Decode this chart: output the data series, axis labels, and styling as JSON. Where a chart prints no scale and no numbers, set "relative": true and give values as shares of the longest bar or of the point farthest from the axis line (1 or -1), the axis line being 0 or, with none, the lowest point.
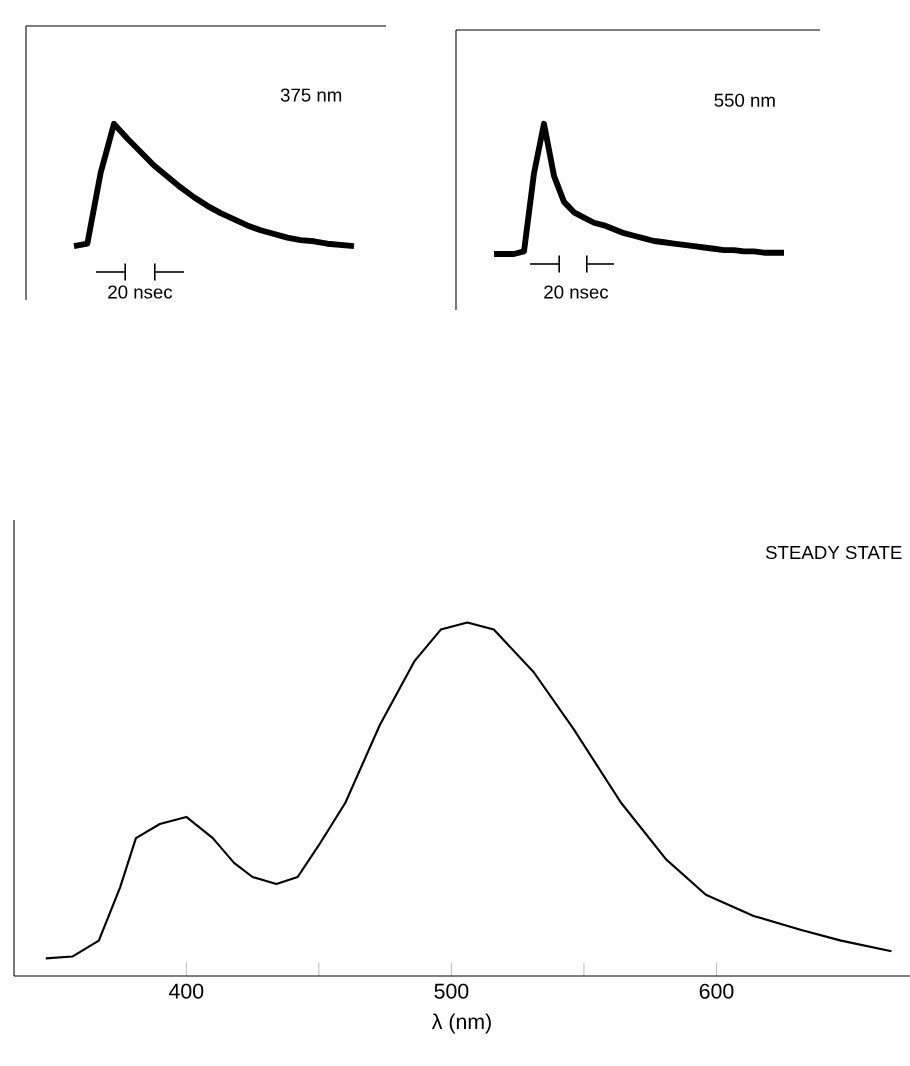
{
  "chart_data": [
    {
      "type": "line",
      "title": "375 nm",
      "relative": true,
      "color": "#000000",
      "annotations": [
        "20 nsec"
      ],
      "categories": [
        null,
        null,
        null,
        null,
        null,
        null,
        null,
        null,
        null,
        null,
        null,
        null,
        null,
        null,
        null,
        null,
        null,
        null,
        null,
        null,
        null,
        null
      ],
      "values": [
        0,
        0.02,
        0.6,
        1.0,
        0.88,
        0.77,
        0.66,
        0.57,
        0.48,
        0.4,
        0.33,
        0.27,
        0.22,
        0.17,
        0.13,
        0.1,
        0.07,
        0.05,
        0.04,
        0.02,
        0.01,
        0
      ]
    },
    {
      "type": "line",
      "title": "550 nm",
      "relative": true,
      "color": "#000000",
      "annotations": [
        "20 nsec"
      ],
      "categories": [
        null,
        null,
        null,
        null,
        null,
        null,
        null,
        null,
        null,
        null,
        null,
        null,
        null,
        null,
        null,
        null,
        null,
        null,
        null,
        null,
        null,
        null,
        null,
        null,
        null,
        null,
        null,
        null,
        null,
        null
      ],
      "values": [
        0,
        0,
        0,
        0.02,
        0.62,
        1.0,
        0.6,
        0.4,
        0.32,
        0.28,
        0.24,
        0.22,
        0.19,
        0.16,
        0.14,
        0.12,
        0.1,
        0.09,
        0.08,
        0.07,
        0.06,
        0.05,
        0.04,
        0.03,
        0.03,
        0.02,
        0.02,
        0.01,
        0.01,
        0.01
      ]
    },
    {
      "type": "line",
      "title": "STEADY STATE",
      "relative": true,
      "xlabel": "λ (nm)",
      "color": "#000000",
      "xlim": [
        335,
        673
      ],
      "xticks": [
        400,
        {
          "value": 450,
          "label": null
        },
        500,
        {
          "value": 550,
          "label": null
        },
        600
      ],
      "x": [
        347,
        357,
        367,
        375,
        381,
        390,
        400,
        410,
        418,
        425,
        434,
        442,
        450,
        460,
        473,
        486,
        496,
        506,
        516,
        531,
        546,
        564,
        581,
        596,
        614,
        632,
        647,
        666
      ],
      "values": [
        0.05,
        0.055,
        0.1,
        0.25,
        0.39,
        0.43,
        0.45,
        0.39,
        0.32,
        0.28,
        0.26,
        0.28,
        0.37,
        0.49,
        0.71,
        0.89,
        0.98,
        1.0,
        0.98,
        0.86,
        0.7,
        0.49,
        0.33,
        0.23,
        0.17,
        0.13,
        0.1,
        0.07
      ]
    }
  ]
}
